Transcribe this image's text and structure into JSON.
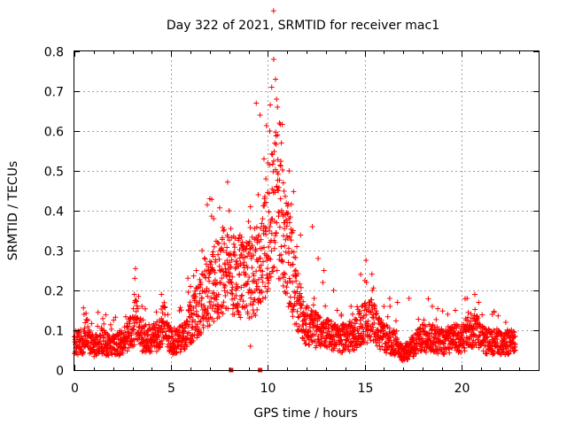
{
  "chart_data": {
    "type": "scatter",
    "title": "Day 322 of 2021, SRMTID for receiver mac1",
    "xlabel": "GPS time / hours",
    "ylabel": "SRMTID / TECUs",
    "xlim": [
      0,
      24
    ],
    "ylim": [
      0,
      0.8
    ],
    "grid": true,
    "marker": "+",
    "marker_color": "#ff0000",
    "xticks": [
      "0",
      "5",
      "10",
      "15",
      "20"
    ],
    "yticks": [
      "0",
      "0.1",
      "0.2",
      "0.3",
      "0.4",
      "0.5",
      "0.6",
      "0.7",
      "0.8"
    ],
    "envelope": [
      [
        0.0,
        0.07
      ],
      [
        0.5,
        0.07
      ],
      [
        0.6,
        0.1
      ],
      [
        0.8,
        0.07
      ],
      [
        1.0,
        0.06
      ],
      [
        1.5,
        0.07
      ],
      [
        2.0,
        0.06
      ],
      [
        2.5,
        0.07
      ],
      [
        3.0,
        0.1
      ],
      [
        3.2,
        0.13
      ],
      [
        3.5,
        0.08
      ],
      [
        4.0,
        0.08
      ],
      [
        4.5,
        0.09
      ],
      [
        4.6,
        0.13
      ],
      [
        5.0,
        0.07
      ],
      [
        5.5,
        0.08
      ],
      [
        5.8,
        0.1
      ],
      [
        6.0,
        0.12
      ],
      [
        6.5,
        0.16
      ],
      [
        7.0,
        0.2
      ],
      [
        7.5,
        0.24
      ],
      [
        8.0,
        0.25
      ],
      [
        8.5,
        0.24
      ],
      [
        9.0,
        0.22
      ],
      [
        9.5,
        0.26
      ],
      [
        10.0,
        0.34
      ],
      [
        10.4,
        0.42
      ],
      [
        10.8,
        0.34
      ],
      [
        11.2,
        0.26
      ],
      [
        11.6,
        0.16
      ],
      [
        12.0,
        0.11
      ],
      [
        12.5,
        0.1
      ],
      [
        13.0,
        0.09
      ],
      [
        13.5,
        0.08
      ],
      [
        14.0,
        0.08
      ],
      [
        14.5,
        0.09
      ],
      [
        15.0,
        0.12
      ],
      [
        15.3,
        0.13
      ],
      [
        15.6,
        0.11
      ],
      [
        16.0,
        0.08
      ],
      [
        16.5,
        0.07
      ],
      [
        17.0,
        0.04
      ],
      [
        17.5,
        0.06
      ],
      [
        18.0,
        0.08
      ],
      [
        18.5,
        0.08
      ],
      [
        19.0,
        0.07
      ],
      [
        19.5,
        0.08
      ],
      [
        20.0,
        0.08
      ],
      [
        20.5,
        0.1
      ],
      [
        20.8,
        0.11
      ],
      [
        21.0,
        0.08
      ],
      [
        21.5,
        0.07
      ],
      [
        22.0,
        0.07
      ],
      [
        22.5,
        0.07
      ],
      [
        22.8,
        0.07
      ]
    ],
    "peaks": [
      [
        10.3,
        0.78
      ],
      [
        10.4,
        0.73
      ],
      [
        10.2,
        0.71
      ],
      [
        10.45,
        0.68
      ],
      [
        9.4,
        0.67
      ],
      [
        10.5,
        0.66
      ],
      [
        9.6,
        0.64
      ],
      [
        10.6,
        0.62
      ],
      [
        10.1,
        0.6
      ],
      [
        10.7,
        0.57
      ],
      [
        9.8,
        0.53
      ],
      [
        10.0,
        0.52
      ],
      [
        11.1,
        0.5
      ],
      [
        9.9,
        0.48
      ],
      [
        10.8,
        0.47
      ],
      [
        10.3,
        0.45
      ],
      [
        9.5,
        0.44
      ],
      [
        7.0,
        0.43
      ],
      [
        9.1,
        0.41
      ],
      [
        8.0,
        0.4
      ],
      [
        10.9,
        0.39
      ],
      [
        11.0,
        0.37
      ],
      [
        7.2,
        0.38
      ],
      [
        12.3,
        0.36
      ],
      [
        11.3,
        0.35
      ],
      [
        11.5,
        0.31
      ],
      [
        12.6,
        0.28
      ],
      [
        8.5,
        0.33
      ],
      [
        6.6,
        0.3
      ],
      [
        6.3,
        0.25
      ],
      [
        6.0,
        0.21
      ],
      [
        3.1,
        0.19
      ],
      [
        4.5,
        0.19
      ],
      [
        14.8,
        0.24
      ],
      [
        15.1,
        0.22
      ],
      [
        15.4,
        0.2
      ],
      [
        14.3,
        0.16
      ],
      [
        16.3,
        0.18
      ],
      [
        16.7,
        0.17
      ],
      [
        17.3,
        0.18
      ],
      [
        18.5,
        0.16
      ],
      [
        19.3,
        0.14
      ],
      [
        20.3,
        0.18
      ],
      [
        20.7,
        0.19
      ],
      [
        20.9,
        0.17
      ],
      [
        21.6,
        0.14
      ],
      [
        22.3,
        0.12
      ],
      [
        12.9,
        0.25
      ],
      [
        13.4,
        0.2
      ],
      [
        9.1,
        0.06
      ],
      [
        0.5,
        0.14
      ],
      [
        1.2,
        0.11
      ],
      [
        2.2,
        0.09
      ],
      [
        13.8,
        0.14
      ],
      [
        16.0,
        0.16
      ]
    ],
    "axis_markers": [
      [
        8.1,
        0.0
      ],
      [
        9.6,
        0.0
      ]
    ],
    "seed": 322
  }
}
